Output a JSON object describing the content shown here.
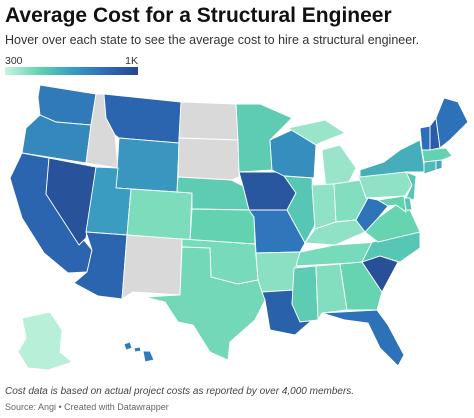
{
  "title": "Average Cost for a Structural Engineer",
  "subtitle": "Hover over each state to see the average cost to hire a structural engineer.",
  "legend": {
    "min_label": "300",
    "max_label": "1K",
    "colors": [
      "#c9f5e0",
      "#63d3b0",
      "#3a9fc0",
      "#2c6db8",
      "#26478e"
    ]
  },
  "no_data_color": "#d9d9d9",
  "footer": {
    "note": "Cost data is based on actual project costs as reported by over 4,000 members.",
    "source": "Source: Angi • Created with Datawrapper"
  },
  "map_data": {
    "type": "choropleth",
    "unit": "USD",
    "scale": [
      300,
      1000
    ],
    "states": [
      {
        "id": "WA",
        "value": 780
      },
      {
        "id": "OR",
        "value": 730
      },
      {
        "id": "CA",
        "value": 860
      },
      {
        "id": "NV",
        "value": 950
      },
      {
        "id": "ID",
        "value": null
      },
      {
        "id": "MT",
        "value": 860
      },
      {
        "id": "WY",
        "value": 680
      },
      {
        "id": "UT",
        "value": 660
      },
      {
        "id": "AZ",
        "value": 860
      },
      {
        "id": "CO",
        "value": 430
      },
      {
        "id": "NM",
        "value": null
      },
      {
        "id": "ND",
        "value": null
      },
      {
        "id": "SD",
        "value": null
      },
      {
        "id": "NE",
        "value": 500
      },
      {
        "id": "KS",
        "value": 480
      },
      {
        "id": "OK",
        "value": 440
      },
      {
        "id": "TX",
        "value": 450
      },
      {
        "id": "MN",
        "value": 500
      },
      {
        "id": "IA",
        "value": 930
      },
      {
        "id": "MO",
        "value": 790
      },
      {
        "id": "AR",
        "value": 410
      },
      {
        "id": "LA",
        "value": 880
      },
      {
        "id": "WI",
        "value": 710
      },
      {
        "id": "IL",
        "value": 520
      },
      {
        "id": "MI",
        "value": 380
      },
      {
        "id": "IN",
        "value": 400
      },
      {
        "id": "OH",
        "value": 420
      },
      {
        "id": "KY",
        "value": 400
      },
      {
        "id": "TN",
        "value": 440
      },
      {
        "id": "MS",
        "value": 500
      },
      {
        "id": "AL",
        "value": 420
      },
      {
        "id": "GA",
        "value": 470
      },
      {
        "id": "FL",
        "value": 810
      },
      {
        "id": "SC",
        "value": 960
      },
      {
        "id": "NC",
        "value": 520
      },
      {
        "id": "VA",
        "value": 470
      },
      {
        "id": "WV",
        "value": 800
      },
      {
        "id": "PA",
        "value": 400
      },
      {
        "id": "NY",
        "value": 600
      },
      {
        "id": "NJ",
        "value": 520
      },
      {
        "id": "DE",
        "value": 520
      },
      {
        "id": "MD",
        "value": 480
      },
      {
        "id": "CT",
        "value": 560
      },
      {
        "id": "RI",
        "value": 620
      },
      {
        "id": "MA",
        "value": 480
      },
      {
        "id": "VT",
        "value": 820
      },
      {
        "id": "NH",
        "value": 900
      },
      {
        "id": "ME",
        "value": 810
      },
      {
        "id": "AK",
        "value": 330
      },
      {
        "id": "HI",
        "value": 780
      }
    ]
  }
}
